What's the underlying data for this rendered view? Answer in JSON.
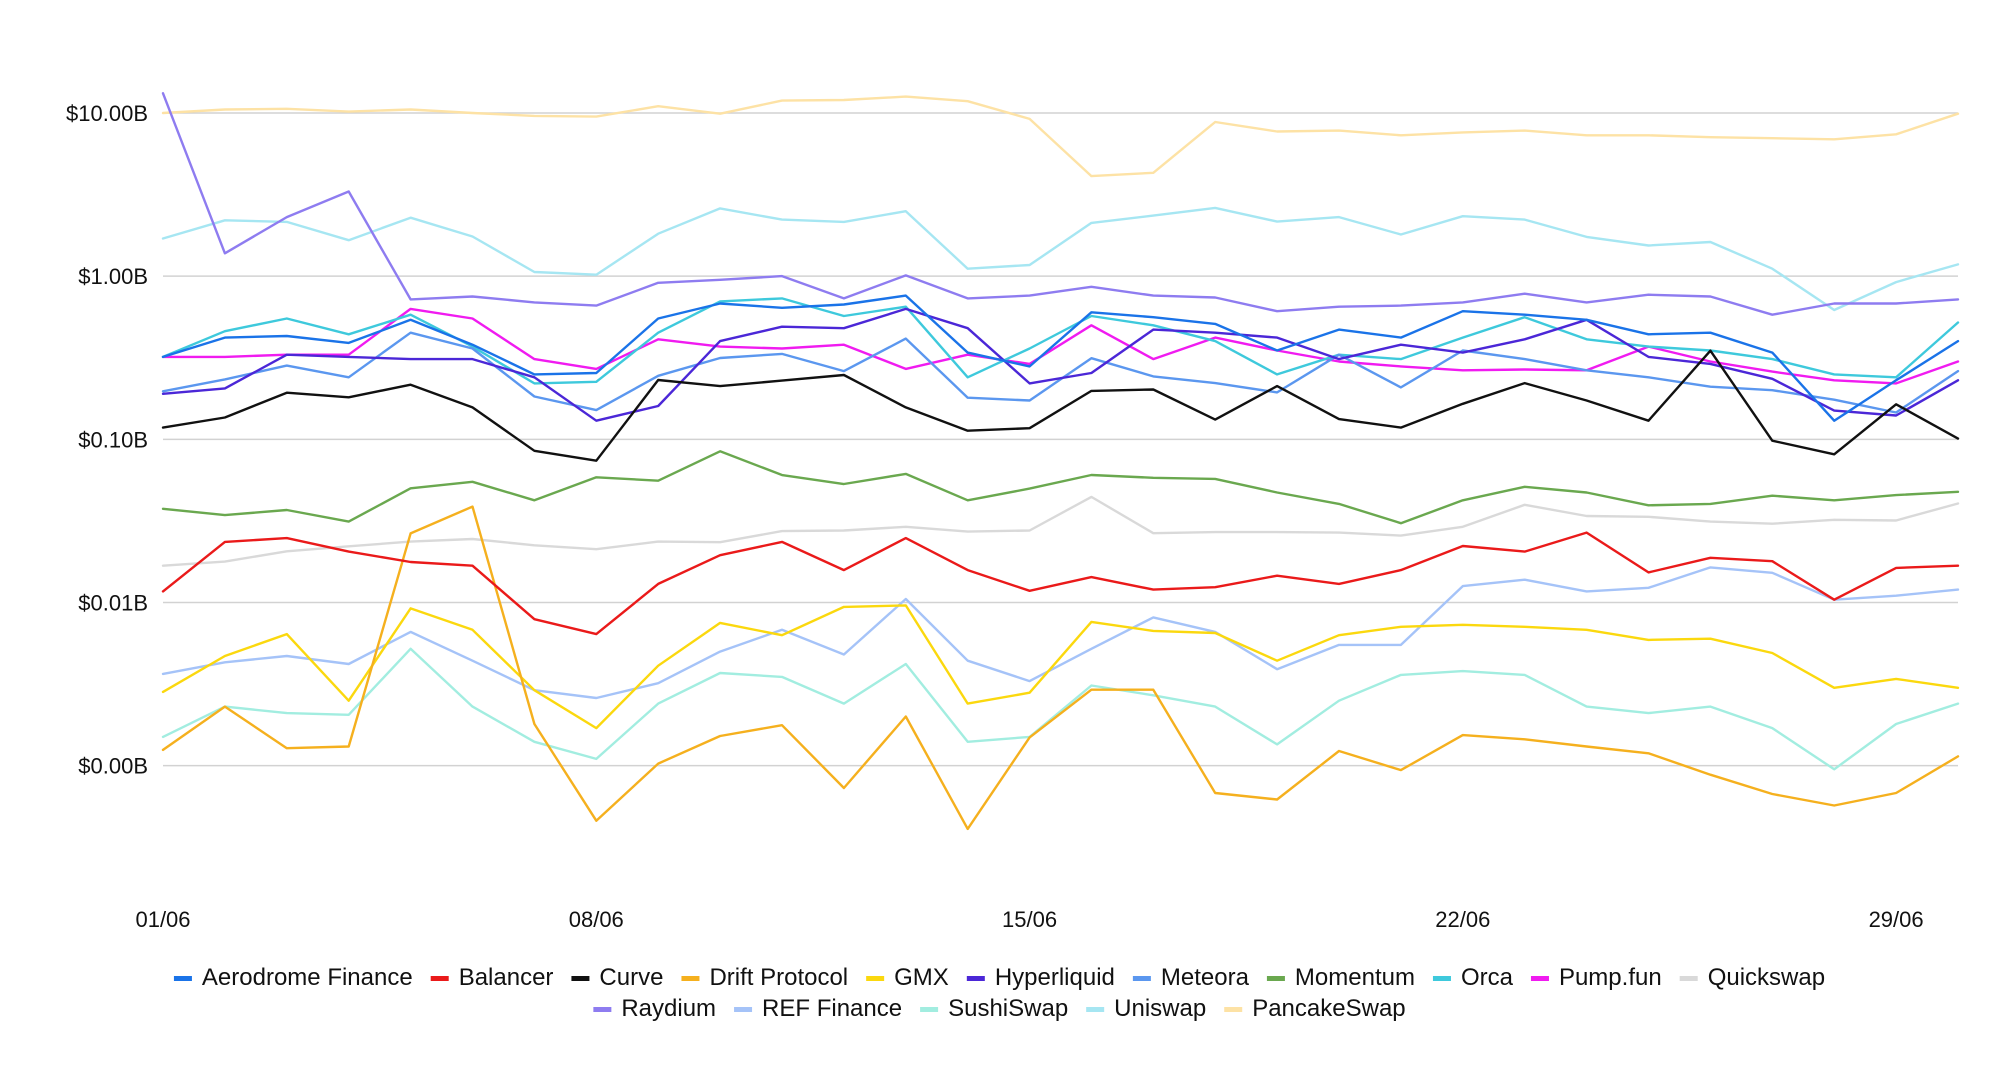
{
  "chart_data": {
    "type": "line",
    "title": "",
    "xlabel": "",
    "ylabel": "",
    "y_scale": "log",
    "ylim": [
      0.00014,
      28
    ],
    "y_ticks": [
      {
        "value": 10,
        "label": "$10.00B"
      },
      {
        "value": 1,
        "label": "$1.00B"
      },
      {
        "value": 0.1,
        "label": "$0.10B"
      },
      {
        "value": 0.01,
        "label": "$0.01B"
      },
      {
        "value": 0.001,
        "label": "$0.00B"
      }
    ],
    "x": [
      "01/06",
      "02/06",
      "03/06",
      "04/06",
      "05/06",
      "06/06",
      "07/06",
      "08/06",
      "09/06",
      "10/06",
      "11/06",
      "12/06",
      "13/06",
      "14/06",
      "15/06",
      "16/06",
      "17/06",
      "18/06",
      "19/06",
      "20/06",
      "21/06",
      "22/06",
      "23/06",
      "24/06",
      "25/06",
      "26/06",
      "27/06",
      "28/06",
      "29/06",
      "30/06"
    ],
    "x_ticks": [
      {
        "index": 0,
        "label": "01/06"
      },
      {
        "index": 7,
        "label": "08/06"
      },
      {
        "index": 14,
        "label": "15/06"
      },
      {
        "index": 21,
        "label": "22/06"
      },
      {
        "index": 28,
        "label": "29/06"
      }
    ],
    "grid": true,
    "legend_position": "bottom",
    "series": [
      {
        "name": "Aerodrome Finance",
        "color": "#1a73e8",
        "values": [
          0.32,
          0.42,
          0.43,
          0.39,
          0.54,
          0.38,
          0.25,
          0.255,
          0.55,
          0.68,
          0.64,
          0.67,
          0.76,
          0.34,
          0.28,
          0.6,
          0.56,
          0.51,
          0.35,
          0.47,
          0.42,
          0.61,
          0.58,
          0.54,
          0.44,
          0.45,
          0.34,
          0.13,
          0.23,
          0.4
        ]
      },
      {
        "name": "Balancer",
        "color": "#ea1a1a",
        "values": [
          0.0117,
          0.0235,
          0.0248,
          0.0205,
          0.0177,
          0.0168,
          0.0079,
          0.0064,
          0.013,
          0.0195,
          0.0235,
          0.0158,
          0.0248,
          0.0158,
          0.0118,
          0.0143,
          0.012,
          0.0124,
          0.0146,
          0.013,
          0.0158,
          0.0222,
          0.0205,
          0.0268,
          0.0153,
          0.0188,
          0.0179,
          0.0104,
          0.0163,
          0.0168
        ]
      },
      {
        "name": "Curve",
        "color": "#111111",
        "values": [
          0.118,
          0.136,
          0.193,
          0.181,
          0.216,
          0.157,
          0.085,
          0.074,
          0.231,
          0.212,
          0.229,
          0.248,
          0.157,
          0.113,
          0.117,
          0.198,
          0.202,
          0.132,
          0.212,
          0.133,
          0.118,
          0.165,
          0.221,
          0.173,
          0.13,
          0.349,
          0.098,
          0.081,
          0.164,
          0.101
        ]
      },
      {
        "name": "Drift Protocol",
        "color": "#f5b01e",
        "values": [
          0.00125,
          0.0023,
          0.00128,
          0.00131,
          0.0265,
          0.0387,
          0.0018,
          0.00046,
          0.00103,
          0.00152,
          0.00177,
          0.00073,
          0.002,
          0.00041,
          0.00149,
          0.00292,
          0.00292,
          0.00068,
          0.00062,
          0.00123,
          0.00094,
          0.00154,
          0.00145,
          0.00131,
          0.00119,
          0.00088,
          0.00067,
          0.00057,
          0.00068,
          0.00114
        ]
      },
      {
        "name": "GMX",
        "color": "#fbd80e",
        "values": [
          0.00283,
          0.0047,
          0.0064,
          0.0025,
          0.0092,
          0.0068,
          0.0029,
          0.0017,
          0.0041,
          0.0075,
          0.0063,
          0.0094,
          0.0096,
          0.0024,
          0.0028,
          0.0076,
          0.0067,
          0.0065,
          0.0044,
          0.0063,
          0.0071,
          0.0073,
          0.0071,
          0.0068,
          0.0059,
          0.006,
          0.0049,
          0.003,
          0.0034,
          0.003
        ]
      },
      {
        "name": "Hyperliquid",
        "color": "#4b27d7",
        "values": [
          0.19,
          0.205,
          0.33,
          0.32,
          0.31,
          0.31,
          0.24,
          0.13,
          0.16,
          0.4,
          0.49,
          0.48,
          0.63,
          0.48,
          0.22,
          0.255,
          0.47,
          0.45,
          0.42,
          0.31,
          0.38,
          0.34,
          0.41,
          0.54,
          0.32,
          0.29,
          0.235,
          0.15,
          0.14,
          0.23
        ]
      },
      {
        "name": "Meteora",
        "color": "#5b97ef",
        "values": [
          0.197,
          0.233,
          0.283,
          0.24,
          0.45,
          0.36,
          0.183,
          0.151,
          0.245,
          0.315,
          0.334,
          0.262,
          0.414,
          0.18,
          0.173,
          0.314,
          0.243,
          0.221,
          0.194,
          0.33,
          0.208,
          0.35,
          0.31,
          0.265,
          0.24,
          0.21,
          0.2,
          0.175,
          0.146,
          0.262
        ]
      },
      {
        "name": "Momentum",
        "color": "#6aa84f",
        "values": [
          0.0375,
          0.0343,
          0.0369,
          0.0313,
          0.0501,
          0.0549,
          0.0423,
          0.0585,
          0.0558,
          0.0844,
          0.0604,
          0.0532,
          0.0614,
          0.0423,
          0.0499,
          0.0604,
          0.0581,
          0.0572,
          0.0472,
          0.0402,
          0.0306,
          0.0423,
          0.0512,
          0.0472,
          0.0394,
          0.0402,
          0.0451,
          0.0423,
          0.0455,
          0.0477
        ]
      },
      {
        "name": "Orca",
        "color": "#3ec9dc",
        "values": [
          0.32,
          0.46,
          0.55,
          0.44,
          0.58,
          0.37,
          0.22,
          0.225,
          0.45,
          0.7,
          0.73,
          0.57,
          0.65,
          0.24,
          0.36,
          0.57,
          0.5,
          0.4,
          0.25,
          0.33,
          0.31,
          0.42,
          0.56,
          0.41,
          0.37,
          0.35,
          0.31,
          0.25,
          0.24,
          0.52
        ]
      },
      {
        "name": "Pump.fun",
        "color": "#f01bf0",
        "values": [
          0.32,
          0.32,
          0.33,
          0.33,
          0.63,
          0.55,
          0.31,
          0.27,
          0.41,
          0.37,
          0.36,
          0.38,
          0.27,
          0.33,
          0.29,
          0.5,
          0.31,
          0.42,
          0.35,
          0.3,
          0.28,
          0.265,
          0.268,
          0.265,
          0.37,
          0.3,
          0.26,
          0.23,
          0.22,
          0.3
        ]
      },
      {
        "name": "Quickswap",
        "color": "#d9d9d9",
        "values": [
          0.0168,
          0.0178,
          0.0206,
          0.0221,
          0.0236,
          0.0245,
          0.0224,
          0.0212,
          0.0236,
          0.0234,
          0.0274,
          0.0276,
          0.0291,
          0.0272,
          0.0276,
          0.0444,
          0.0266,
          0.027,
          0.027,
          0.0268,
          0.0257,
          0.0291,
          0.0397,
          0.0339,
          0.0335,
          0.0313,
          0.0304,
          0.0321,
          0.0318,
          0.0404
        ]
      },
      {
        "name": "Raydium",
        "color": "#8e7cf0",
        "values": [
          13.2,
          1.38,
          2.3,
          3.3,
          0.72,
          0.75,
          0.69,
          0.66,
          0.91,
          0.95,
          1.0,
          0.73,
          1.01,
          0.73,
          0.76,
          0.86,
          0.76,
          0.74,
          0.61,
          0.65,
          0.66,
          0.69,
          0.78,
          0.69,
          0.77,
          0.75,
          0.58,
          0.68,
          0.68,
          0.72
        ]
      },
      {
        "name": "REF Finance",
        "color": "#a5c3f8",
        "values": [
          0.00365,
          0.0043,
          0.0047,
          0.0042,
          0.0066,
          0.0044,
          0.0029,
          0.0026,
          0.0032,
          0.005,
          0.0068,
          0.0048,
          0.0105,
          0.0044,
          0.0033,
          0.0052,
          0.0081,
          0.0066,
          0.0039,
          0.0055,
          0.0055,
          0.0126,
          0.0138,
          0.0117,
          0.0123,
          0.0164,
          0.0152,
          0.0104,
          0.011,
          0.012
        ]
      },
      {
        "name": "SushiSwap",
        "color": "#a2ede0",
        "values": [
          0.0015,
          0.0023,
          0.0021,
          0.00205,
          0.0052,
          0.0023,
          0.0014,
          0.0011,
          0.0024,
          0.0037,
          0.0035,
          0.0024,
          0.0042,
          0.0014,
          0.0015,
          0.0031,
          0.0027,
          0.0023,
          0.00135,
          0.0025,
          0.0036,
          0.0038,
          0.0036,
          0.0023,
          0.0021,
          0.0023,
          0.0017,
          0.00095,
          0.0018,
          0.0024
        ]
      },
      {
        "name": "Uniswap",
        "color": "#a6e6f2",
        "values": [
          1.7,
          2.2,
          2.15,
          1.66,
          2.28,
          1.75,
          1.06,
          1.02,
          1.82,
          2.6,
          2.22,
          2.15,
          2.5,
          1.11,
          1.17,
          2.12,
          2.35,
          2.62,
          2.16,
          2.3,
          1.8,
          2.33,
          2.22,
          1.74,
          1.54,
          1.62,
          1.11,
          0.62,
          0.92,
          1.18
        ]
      },
      {
        "name": "PancakeSwap",
        "color": "#fde2a5",
        "values": [
          10.0,
          10.5,
          10.6,
          10.2,
          10.5,
          10.0,
          9.6,
          9.5,
          11.0,
          9.9,
          11.9,
          12.0,
          12.6,
          11.8,
          9.2,
          4.1,
          4.3,
          8.8,
          7.7,
          7.8,
          7.3,
          7.6,
          7.8,
          7.3,
          7.3,
          7.1,
          7.0,
          6.9,
          7.4,
          9.9
        ]
      }
    ]
  }
}
